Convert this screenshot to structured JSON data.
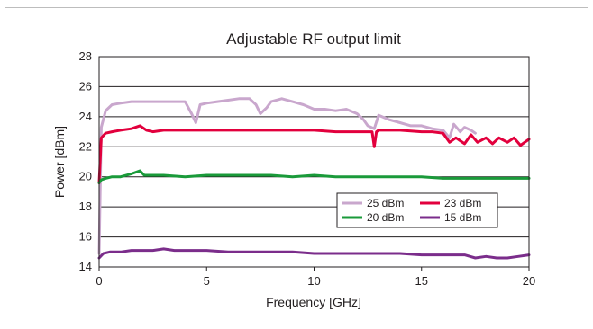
{
  "chart_data": {
    "type": "line",
    "title": "Adjustable RF output limit",
    "xlabel": "Frequency [GHz]",
    "ylabel": "Power [dBm]",
    "xlim": [
      0,
      20
    ],
    "ylim": [
      14,
      28
    ],
    "xticks": [
      0,
      5,
      10,
      15,
      20
    ],
    "yticks": [
      14,
      16,
      18,
      20,
      22,
      24,
      26,
      28
    ],
    "grid": "horizontal",
    "legend_position": "lower-right",
    "series": [
      {
        "name": "25 dBm",
        "color": "#c9a7cd",
        "x": [
          0.0,
          0.1,
          0.3,
          0.6,
          1.0,
          1.5,
          2.0,
          2.5,
          3.0,
          3.5,
          4.0,
          4.3,
          4.5,
          4.7,
          5.0,
          5.5,
          6.0,
          6.5,
          7.0,
          7.3,
          7.5,
          7.8,
          8.0,
          8.5,
          9.0,
          9.5,
          10.0,
          10.5,
          11.0,
          11.5,
          12.0,
          12.3,
          12.5,
          12.8,
          13.0,
          13.5,
          14.0,
          14.5,
          15.0,
          15.5,
          16.0,
          16.3,
          16.5,
          16.8,
          17.0,
          17.3,
          17.5
        ],
        "y": [
          14.9,
          23.3,
          24.4,
          24.8,
          24.9,
          25.0,
          25.0,
          25.0,
          25.0,
          25.0,
          25.0,
          24.2,
          23.6,
          24.8,
          24.9,
          25.0,
          25.1,
          25.2,
          25.2,
          24.8,
          24.2,
          24.6,
          25.0,
          25.2,
          25.0,
          24.8,
          24.5,
          24.5,
          24.4,
          24.5,
          24.2,
          23.8,
          23.4,
          23.2,
          24.1,
          23.8,
          23.6,
          23.4,
          23.4,
          23.2,
          23.1,
          22.6,
          23.5,
          23.0,
          23.3,
          23.1,
          22.9
        ]
      },
      {
        "name": "23 dBm",
        "color": "#e2003d",
        "x": [
          0.0,
          0.1,
          0.3,
          0.6,
          1.0,
          1.5,
          1.9,
          2.2,
          2.5,
          3.0,
          4.0,
          5.0,
          6.0,
          7.0,
          8.0,
          9.0,
          10.0,
          11.0,
          12.0,
          12.7,
          12.8,
          12.9,
          13.0,
          14.0,
          15.0,
          15.5,
          16.0,
          16.3,
          16.6,
          17.0,
          17.3,
          17.6,
          18.0,
          18.3,
          18.6,
          19.0,
          19.3,
          19.6,
          20.0
        ],
        "y": [
          19.6,
          22.6,
          22.9,
          23.0,
          23.1,
          23.2,
          23.4,
          23.1,
          23.0,
          23.1,
          23.1,
          23.1,
          23.1,
          23.1,
          23.1,
          23.1,
          23.1,
          23.0,
          23.0,
          23.0,
          22.0,
          23.0,
          23.1,
          23.1,
          23.0,
          23.0,
          22.9,
          22.3,
          22.6,
          22.2,
          22.8,
          22.3,
          22.6,
          22.2,
          22.6,
          22.3,
          22.6,
          22.1,
          22.5
        ]
      },
      {
        "name": "20 dBm",
        "color": "#1a9a3a",
        "x": [
          0.0,
          0.1,
          0.3,
          0.6,
          1.0,
          1.5,
          1.9,
          2.1,
          2.5,
          3.0,
          4.0,
          5.0,
          6.0,
          7.0,
          8.0,
          9.0,
          10.0,
          11.0,
          12.0,
          13.0,
          14.0,
          15.0,
          16.0,
          17.0,
          18.0,
          19.0,
          20.0
        ],
        "y": [
          19.6,
          19.8,
          19.9,
          20.0,
          20.0,
          20.2,
          20.4,
          20.1,
          20.1,
          20.1,
          20.0,
          20.1,
          20.1,
          20.1,
          20.1,
          20.0,
          20.1,
          20.0,
          20.0,
          20.0,
          20.0,
          20.0,
          19.9,
          19.9,
          19.9,
          19.9,
          19.9
        ]
      },
      {
        "name": "15 dBm",
        "color": "#7b2d8b",
        "x": [
          0.0,
          0.2,
          0.5,
          1.0,
          1.5,
          2.0,
          2.5,
          3.0,
          3.5,
          4.0,
          5.0,
          6.0,
          7.0,
          8.0,
          9.0,
          10.0,
          11.0,
          12.0,
          13.0,
          14.0,
          15.0,
          16.0,
          17.0,
          17.5,
          18.0,
          18.5,
          19.0,
          19.5,
          20.0
        ],
        "y": [
          14.6,
          14.9,
          15.0,
          15.0,
          15.1,
          15.1,
          15.1,
          15.2,
          15.1,
          15.1,
          15.1,
          15.0,
          15.0,
          15.0,
          15.0,
          14.9,
          14.9,
          14.9,
          14.9,
          14.9,
          14.8,
          14.8,
          14.8,
          14.6,
          14.7,
          14.6,
          14.6,
          14.7,
          14.8
        ]
      }
    ]
  }
}
